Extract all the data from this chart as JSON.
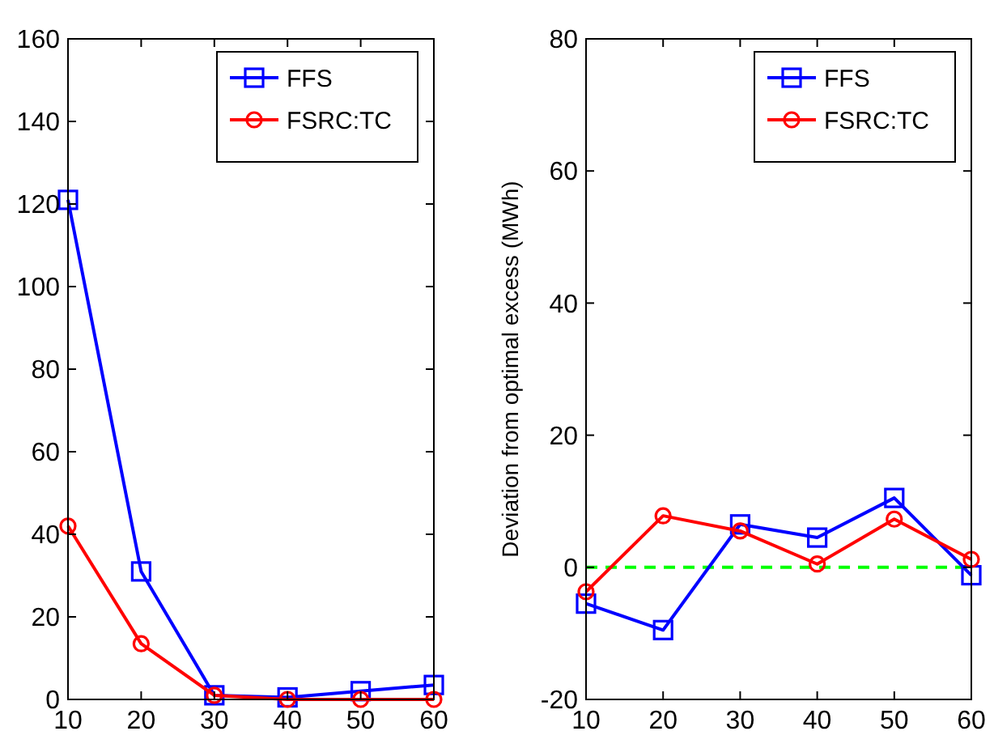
{
  "chart_data": [
    {
      "type": "line",
      "x": [
        10,
        20,
        30,
        40,
        50,
        60
      ],
      "xlim": [
        10,
        60
      ],
      "xticks": [
        10,
        20,
        30,
        40,
        50,
        60
      ],
      "ylim": [
        0,
        160
      ],
      "yticks": [
        0,
        20,
        40,
        60,
        80,
        100,
        120,
        140,
        160
      ],
      "legend": "top right",
      "series": [
        {
          "name": "FFS",
          "color": "#0000ff",
          "marker": "square",
          "values": [
            121,
            31,
            1,
            0.5,
            2,
            3.5
          ]
        },
        {
          "name": "FSRC:TC",
          "color": "#ff0000",
          "marker": "circle",
          "values": [
            42,
            13.5,
            1,
            0,
            0,
            0
          ]
        }
      ]
    },
    {
      "type": "line",
      "x": [
        10,
        20,
        30,
        40,
        50,
        60
      ],
      "xlim": [
        10,
        60
      ],
      "xticks": [
        10,
        20,
        30,
        40,
        50,
        60
      ],
      "ylim": [
        -20,
        80
      ],
      "yticks": [
        -20,
        0,
        20,
        40,
        60,
        80
      ],
      "ylabel": "Deviation from optimal excess (MWh)",
      "legend": "top right",
      "ref_lines": [
        {
          "axis": "y",
          "value": 0,
          "color": "#00ff00",
          "line_style": "dashed"
        }
      ],
      "series": [
        {
          "name": "FFS",
          "color": "#0000ff",
          "marker": "square",
          "values": [
            -5.5,
            -9.5,
            6.5,
            4.5,
            10.5,
            -1.2
          ]
        },
        {
          "name": "FSRC:TC",
          "color": "#ff0000",
          "marker": "circle",
          "values": [
            -3.7,
            7.8,
            5.5,
            0.5,
            7.3,
            1.2
          ]
        }
      ]
    }
  ]
}
